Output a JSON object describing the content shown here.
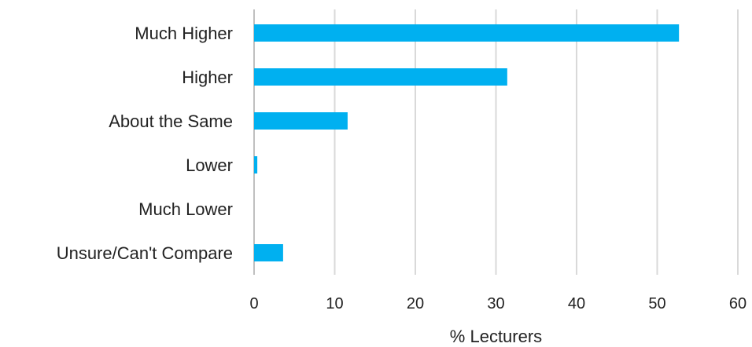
{
  "chart_data": {
    "type": "bar",
    "orientation": "horizontal",
    "categories": [
      "Much Higher",
      "Higher",
      "About the Same",
      "Lower",
      "Much Lower",
      "Unsure/Can't Compare"
    ],
    "values": [
      52.7,
      31.4,
      11.6,
      0.4,
      0,
      3.6
    ],
    "xlabel": "% Lecturers",
    "ylabel": "",
    "title": "",
    "xlim": [
      0,
      60
    ],
    "xticks": [
      "0",
      "10",
      "20",
      "30",
      "40",
      "50",
      "60"
    ],
    "grid": "vertical",
    "legend": "none",
    "bar_color": "#00b0f0"
  }
}
